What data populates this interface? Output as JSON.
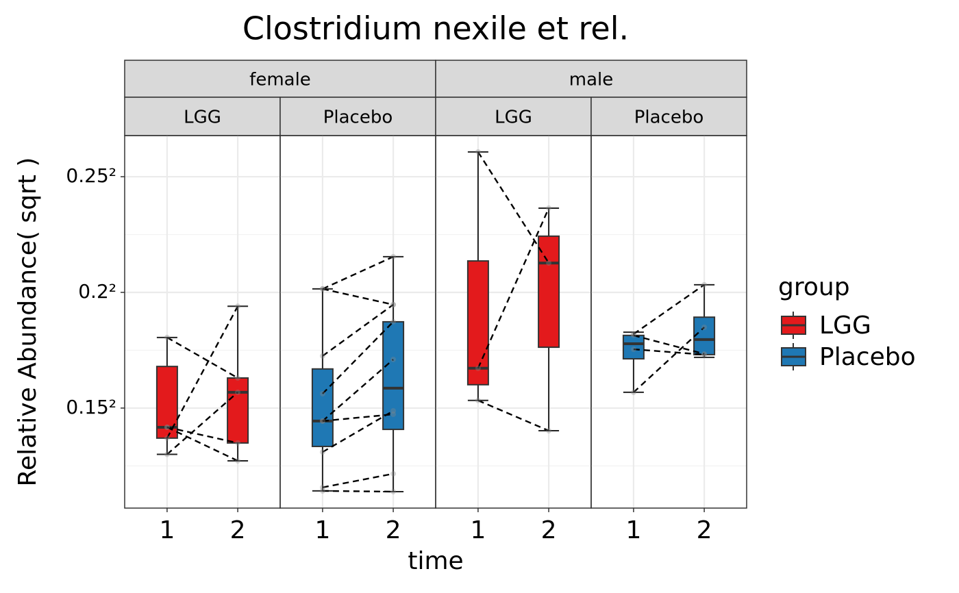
{
  "chart_data": {
    "type": "boxplot",
    "title": "Clostridium nexile et rel.",
    "x_label": "time",
    "y_label": "Relative Abundance( sqrt )",
    "legend_title": "group",
    "scale": "sqrt",
    "grid": true,
    "legend_position": "right",
    "series": [
      {
        "name": "LGG",
        "color": "#e31a1c"
      },
      {
        "name": "Placebo",
        "color": "#1f78b4"
      }
    ],
    "categories": [
      "1",
      "2"
    ],
    "ylim": [
      0.0114,
      0.0717
    ],
    "yticks": [
      {
        "value": 0.0225,
        "label": "0.15²"
      },
      {
        "value": 0.04,
        "label": "0.2²"
      },
      {
        "value": 0.0625,
        "label": "0.25²"
      }
    ],
    "minor_yticks": [
      0.015625,
      0.030625,
      0.050625
    ],
    "facets": [
      {
        "label": "female",
        "panels": [
          {
            "label": "LGG",
            "boxes": [
              {
                "whislo": 0.0169,
                "q1": 0.01877,
                "med": 0.02008,
                "q3": 0.02822,
                "whishi": 0.03258
              },
              {
                "whislo": 0.01618,
                "q1": 0.0182,
                "med": 0.02459,
                "q3": 0.02657,
                "whishi": 0.03764
              }
            ],
            "pairs": [
              [
                0.03258,
                0.02657
              ],
              [
                0.01877,
                0.03764
              ],
              [
                0.0169,
                0.02459
              ],
              [
                0.02008,
                0.0182
              ],
              [
                0.02008,
                0.01618
              ]
            ]
          },
          {
            "label": "Placebo",
            "boxes": [
              {
                "whislo": 0.01304,
                "q1": 0.0178,
                "med": 0.02085,
                "q3": 0.02786,
                "whishi": 0.0406
              },
              {
                "whislo": 0.01297,
                "q1": 0.01982,
                "med": 0.02515,
                "q3": 0.03508,
                "whishi": 0.0464
              }
            ],
            "pairs": [
              [
                0.0406,
                0.0464
              ],
              [
                0.0406,
                0.03791
              ],
              [
                0.02976,
                0.03791
              ],
              [
                0.0244,
                0.03508
              ],
              [
                0.02085,
                0.02924
              ],
              [
                0.02085,
                0.0217
              ],
              [
                0.01716,
                0.02214
              ],
              [
                0.01339,
                0.01479
              ],
              [
                0.01304,
                0.01297
              ]
            ]
          }
        ]
      },
      {
        "label": "male",
        "panels": [
          {
            "label": "LGG",
            "boxes": [
              {
                "whislo": 0.0235,
                "q1": 0.02563,
                "med": 0.02796,
                "q3": 0.04562,
                "whishi": 0.06796
              },
              {
                "whislo": 0.01966,
                "q1": 0.03108,
                "med": 0.04524,
                "q3": 0.05031,
                "whishi": 0.05589
              }
            ],
            "pairs": [
              [
                0.06796,
                0.04524
              ],
              [
                0.02796,
                0.05589
              ],
              [
                0.0235,
                0.01966
              ]
            ]
          },
          {
            "label": "Placebo",
            "boxes": [
              {
                "whislo": 0.02459,
                "q1": 0.02934,
                "med": 0.03161,
                "q3": 0.03291,
                "whishi": 0.03342
              },
              {
                "whislo": 0.02955,
                "q1": 0.02996,
                "med": 0.03226,
                "q3": 0.03583,
                "whishi": 0.04133
              }
            ],
            "pairs": [
              [
                0.03312,
                0.04133
              ],
              [
                0.03077,
                0.02996
              ],
              [
                0.02459,
                0.03419
              ],
              [
                0.03291,
                0.03007
              ]
            ]
          }
        ]
      }
    ]
  }
}
